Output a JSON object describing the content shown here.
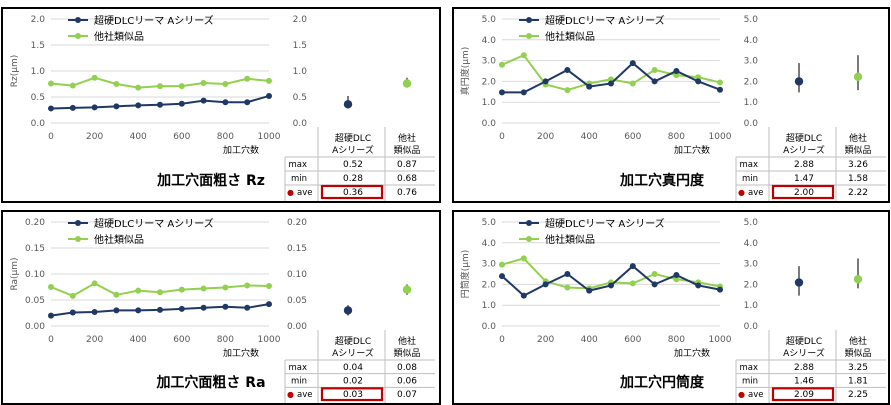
{
  "legend": {
    "series_a": "超硬DLCリーマ Aシリーズ",
    "series_b": "他社類似品"
  },
  "colors": {
    "series_a": "#1f3864",
    "series_b": "#92d050",
    "highlight": "#c00000",
    "grid": "#d9d9d9",
    "axis_text": "#595959"
  },
  "xlabel": "加工穴数",
  "table_headers": {
    "col_a_line1": "超硬DLC",
    "col_a_line2": "Aシリーズ",
    "col_b_line1": "他社",
    "col_b_line2": "類似品"
  },
  "row_labels": {
    "max": "max",
    "min": "min",
    "ave": "ave"
  },
  "ave_marker": "●",
  "chart_data": [
    {
      "type": "line",
      "title": "加工穴面粗さ Rz",
      "ylabel": "Rz(μm)",
      "x": [
        0,
        100,
        200,
        300,
        400,
        500,
        600,
        700,
        800,
        900,
        1000
      ],
      "series": [
        {
          "name": "超硬DLCリーマ Aシリーズ",
          "values": [
            0.28,
            0.29,
            0.3,
            0.32,
            0.34,
            0.35,
            0.37,
            0.43,
            0.4,
            0.4,
            0.52
          ]
        },
        {
          "name": "他社類似品",
          "values": [
            0.76,
            0.72,
            0.87,
            0.75,
            0.68,
            0.71,
            0.71,
            0.77,
            0.75,
            0.85,
            0.81
          ]
        }
      ],
      "ylim": [
        0,
        2
      ],
      "yticks": [
        "0.0",
        "0.5",
        "1.0",
        "1.5",
        "2.0"
      ],
      "xticks": [
        "0",
        "200",
        "400",
        "600",
        "800",
        "1000"
      ],
      "summary": {
        "a": {
          "max": "0.52",
          "min": "0.28",
          "ave": "0.36"
        },
        "b": {
          "max": "0.87",
          "min": "0.68",
          "ave": "0.76"
        }
      },
      "summary_num": {
        "a": [
          0.52,
          0.28,
          0.36
        ],
        "b": [
          0.87,
          0.68,
          0.76
        ]
      }
    },
    {
      "type": "line",
      "title": "加工穴真円度",
      "ylabel": "真円度(μm)",
      "x": [
        0,
        100,
        200,
        300,
        400,
        500,
        600,
        700,
        800,
        900,
        1000
      ],
      "series": [
        {
          "name": "超硬DLCリーマ Aシリーズ",
          "values": [
            1.47,
            1.47,
            2.0,
            2.55,
            1.75,
            1.9,
            2.88,
            2.0,
            2.5,
            2.0,
            1.6
          ]
        },
        {
          "name": "他社類似品",
          "values": [
            2.8,
            3.26,
            1.85,
            1.58,
            1.9,
            2.1,
            1.9,
            2.55,
            2.3,
            2.2,
            1.95
          ]
        }
      ],
      "ylim": [
        0,
        5
      ],
      "yticks": [
        "0.0",
        "1.0",
        "2.0",
        "3.0",
        "4.0",
        "5.0"
      ],
      "xticks": [
        "0",
        "200",
        "400",
        "600",
        "800",
        "1000"
      ],
      "summary": {
        "a": {
          "max": "2.88",
          "min": "1.47",
          "ave": "2.00"
        },
        "b": {
          "max": "3.26",
          "min": "1.58",
          "ave": "2.22"
        }
      },
      "summary_num": {
        "a": [
          2.88,
          1.47,
          2.0
        ],
        "b": [
          3.26,
          1.58,
          2.22
        ]
      }
    },
    {
      "type": "line",
      "title": "加工穴面粗さ Ra",
      "ylabel": "Ra(μm)",
      "x": [
        0,
        100,
        200,
        300,
        400,
        500,
        600,
        700,
        800,
        900,
        1000
      ],
      "series": [
        {
          "name": "超硬DLCリーマ Aシリーズ",
          "values": [
            0.02,
            0.026,
            0.027,
            0.03,
            0.03,
            0.031,
            0.033,
            0.035,
            0.037,
            0.035,
            0.042
          ]
        },
        {
          "name": "他社類似品",
          "values": [
            0.075,
            0.058,
            0.082,
            0.06,
            0.068,
            0.065,
            0.07,
            0.072,
            0.074,
            0.078,
            0.077
          ]
        }
      ],
      "ylim": [
        0,
        0.2
      ],
      "yticks": [
        "0.00",
        "0.05",
        "0.10",
        "0.15",
        "0.20"
      ],
      "xticks": [
        "0",
        "200",
        "400",
        "600",
        "800",
        "1000"
      ],
      "summary": {
        "a": {
          "max": "0.04",
          "min": "0.02",
          "ave": "0.03"
        },
        "b": {
          "max": "0.08",
          "min": "0.06",
          "ave": "0.07"
        }
      },
      "summary_num": {
        "a": [
          0.04,
          0.02,
          0.03
        ],
        "b": [
          0.08,
          0.06,
          0.07
        ]
      }
    },
    {
      "type": "line",
      "title": "加工穴円筒度",
      "ylabel": "円筒度(μm)",
      "x": [
        0,
        100,
        200,
        300,
        400,
        500,
        600,
        700,
        800,
        900,
        1000
      ],
      "series": [
        {
          "name": "超硬DLCリーマ Aシリーズ",
          "values": [
            2.4,
            1.46,
            2.0,
            2.5,
            1.7,
            1.95,
            2.88,
            2.0,
            2.45,
            1.95,
            1.75
          ]
        },
        {
          "name": "他社類似品",
          "values": [
            2.95,
            3.25,
            2.15,
            1.85,
            1.81,
            2.1,
            2.05,
            2.5,
            2.25,
            2.1,
            1.9
          ]
        }
      ],
      "ylim": [
        0,
        5
      ],
      "yticks": [
        "0.0",
        "1.0",
        "2.0",
        "3.0",
        "4.0",
        "5.0"
      ],
      "xticks": [
        "0",
        "200",
        "400",
        "600",
        "800",
        "1000"
      ],
      "summary": {
        "a": {
          "max": "2.88",
          "min": "1.46",
          "ave": "2.09"
        },
        "b": {
          "max": "3.25",
          "min": "1.81",
          "ave": "2.25"
        }
      },
      "summary_num": {
        "a": [
          2.88,
          1.46,
          2.09
        ],
        "b": [
          3.25,
          1.81,
          2.25
        ]
      }
    }
  ]
}
